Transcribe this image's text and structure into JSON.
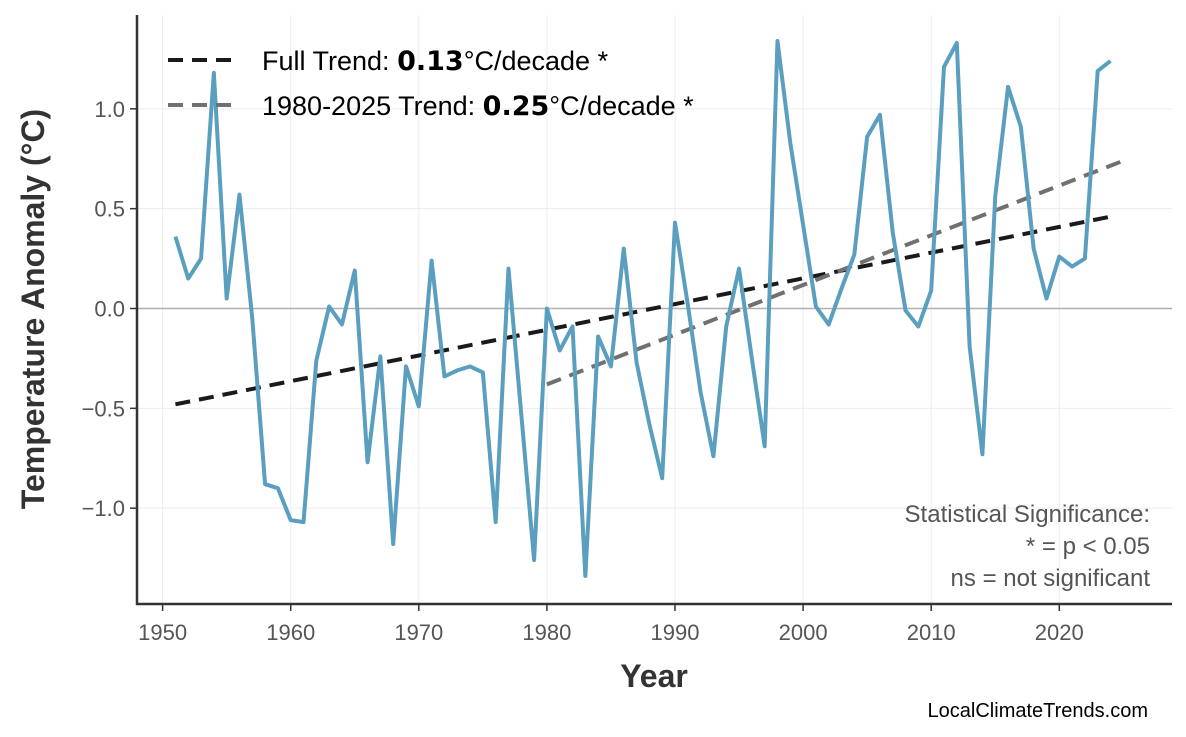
{
  "chart_data": {
    "type": "line",
    "xlabel": "Year",
    "ylabel": "Temperature Anomaly (°C)",
    "xlim": [
      1948,
      2028.8
    ],
    "ylim": [
      -1.48,
      1.47
    ],
    "xticks": [
      1950,
      1960,
      1970,
      1980,
      1990,
      2000,
      2010,
      2020
    ],
    "yticks": [
      -1.0,
      -0.5,
      0.0,
      0.5,
      1.0
    ],
    "ytick_labels": [
      "−1.0",
      "−0.5",
      "0.0",
      "0.5",
      "1.0"
    ],
    "grid": true,
    "legend_position": "top-left",
    "series": [
      {
        "color": "#5a9fbf",
        "x": [
          1951,
          1952,
          1953,
          1954,
          1955,
          1956,
          1957,
          1958,
          1959,
          1960,
          1961,
          1962,
          1963,
          1964,
          1965,
          1966,
          1967,
          1968,
          1969,
          1970,
          1971,
          1972,
          1973,
          1974,
          1975,
          1976,
          1977,
          1978,
          1979,
          1980,
          1981,
          1982,
          1983,
          1984,
          1985,
          1986,
          1987,
          1988,
          1989,
          1990,
          1991,
          1992,
          1993,
          1994,
          1995,
          1996,
          1997,
          1998,
          1999,
          2000,
          2001,
          2002,
          2003,
          2004,
          2005,
          2006,
          2007,
          2008,
          2009,
          2010,
          2011,
          2012,
          2013,
          2014,
          2015,
          2016,
          2017,
          2018,
          2019,
          2020,
          2021,
          2022,
          2023,
          2024
        ],
        "y": [
          0.36,
          0.15,
          0.25,
          1.18,
          0.05,
          0.57,
          -0.05,
          -0.88,
          -0.9,
          -1.06,
          -1.07,
          -0.26,
          0.01,
          -0.08,
          0.19,
          -0.77,
          -0.24,
          -1.18,
          -0.29,
          -0.49,
          0.24,
          -0.34,
          -0.31,
          -0.29,
          -0.32,
          -1.07,
          0.2,
          -0.53,
          -1.26,
          0.0,
          -0.21,
          -0.09,
          -1.34,
          -0.14,
          -0.29,
          0.3,
          -0.27,
          -0.58,
          -0.85,
          0.43,
          0.02,
          -0.42,
          -0.74,
          -0.09,
          0.2,
          -0.25,
          -0.69,
          1.34,
          0.83,
          0.42,
          0.01,
          -0.08,
          0.1,
          0.27,
          0.86,
          0.97,
          0.38,
          -0.01,
          -0.09,
          0.09,
          1.21,
          1.33,
          -0.19,
          -0.73,
          0.56,
          1.11,
          0.91,
          0.3,
          0.05,
          0.26,
          0.21,
          0.25,
          1.19,
          1.24
        ]
      }
    ],
    "trends": [
      {
        "name_prefix": "Full Trend: ",
        "value": "0.13",
        "name_suffix": "°C/decade *",
        "color": "#1a1a1a",
        "x": [
          1951,
          2024
        ],
        "y": [
          -0.48,
          0.46
        ]
      },
      {
        "name_prefix": "1980-2025 Trend: ",
        "value": "0.25",
        "name_suffix": "°C/decade *",
        "color": "#707070",
        "x": [
          1980,
          2025
        ],
        "y": [
          -0.38,
          0.74
        ]
      }
    ],
    "annotation": [
      "Statistical Significance:",
      "* = p < 0.05",
      "ns = not significant"
    ],
    "watermark": "LocalClimateTrends.com"
  }
}
